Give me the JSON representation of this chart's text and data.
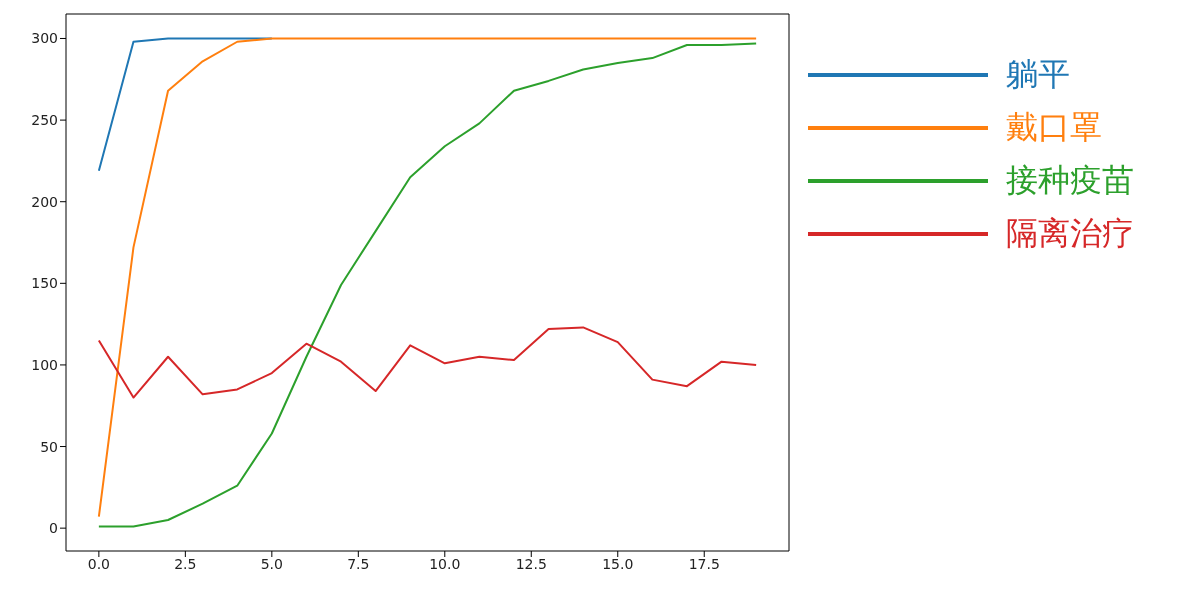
{
  "chart_data": {
    "type": "line",
    "x": [
      0,
      1,
      2,
      3,
      4,
      5,
      6,
      7,
      8,
      9,
      10,
      11,
      12,
      13,
      14,
      15,
      16,
      17,
      18,
      19
    ],
    "series": [
      {
        "name": "躺平",
        "color": "#1f77b4",
        "values": [
          219,
          298,
          300,
          300,
          300,
          300,
          null,
          null,
          null,
          null,
          null,
          null,
          null,
          null,
          null,
          null,
          null,
          null,
          null,
          null
        ]
      },
      {
        "name": "戴口罩",
        "color": "#ff7f0e",
        "values": [
          7,
          172,
          268,
          286,
          298,
          300,
          300,
          300,
          300,
          300,
          300,
          300,
          300,
          300,
          300,
          300,
          300,
          300,
          300,
          300
        ]
      },
      {
        "name": "接种疫苗",
        "color": "#2ca02c",
        "values": [
          1,
          1,
          5,
          15,
          26,
          58,
          105,
          149,
          182,
          215,
          234,
          248,
          268,
          274,
          281,
          285,
          288,
          296,
          296,
          297
        ]
      },
      {
        "name": "隔离治疗",
        "color": "#d62728",
        "values": [
          115,
          80,
          105,
          82,
          85,
          95,
          113,
          102,
          84,
          112,
          101,
          105,
          103,
          122,
          123,
          114,
          91,
          87,
          102,
          100
        ]
      }
    ],
    "xlim": [
      -0.95,
      19.95
    ],
    "xticks": [
      {
        "value": 0,
        "label": "0.0"
      },
      {
        "value": 2.5,
        "label": "2.5"
      },
      {
        "value": 5,
        "label": "5.0"
      },
      {
        "value": 7.5,
        "label": "7.5"
      },
      {
        "value": 10,
        "label": "10.0"
      },
      {
        "value": 12.5,
        "label": "12.5"
      },
      {
        "value": 15,
        "label": "15.0"
      },
      {
        "value": 17.5,
        "label": "17.5"
      }
    ],
    "ylim": [
      -14,
      315
    ],
    "yticks": [
      0,
      50,
      100,
      150,
      200,
      250,
      300
    ],
    "grid": false,
    "legend": "right",
    "marker": "none",
    "line_style": "solid"
  }
}
